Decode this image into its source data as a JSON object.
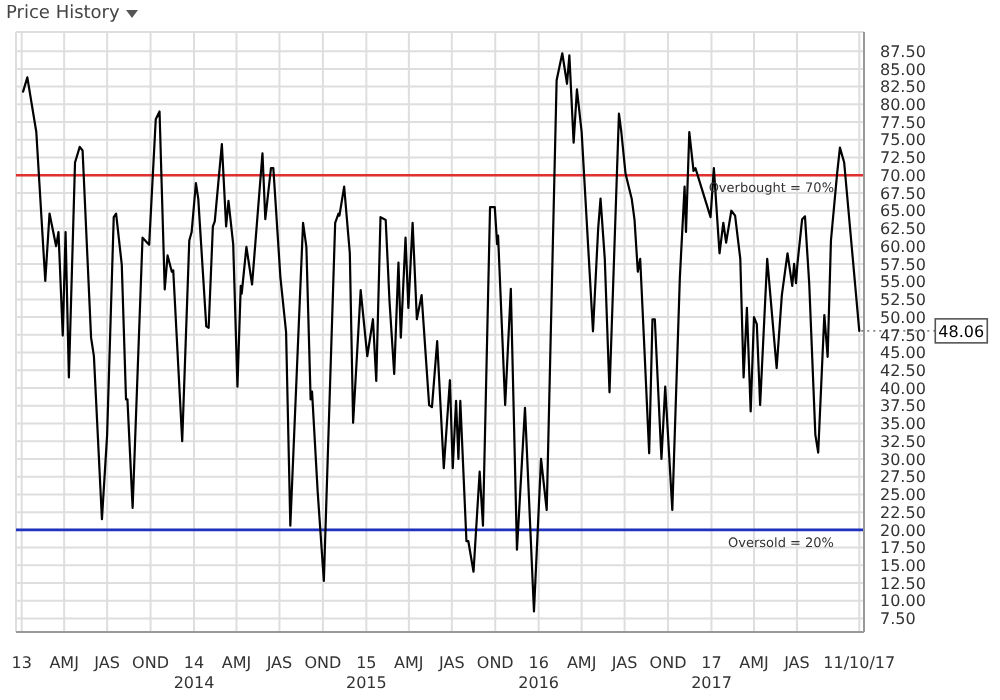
{
  "chart_data": {
    "type": "line",
    "title": "Price History",
    "x": [
      "2013-01-04",
      "2013-01-13",
      "2013-02-01",
      "2013-02-20",
      "2013-03-01",
      "2013-03-15",
      "2013-03-20",
      "2013-03-29",
      "2013-04-04",
      "2013-04-11",
      "2013-04-24",
      "2013-05-04",
      "2013-05-10",
      "2013-05-28",
      "2013-06-03",
      "2013-06-20",
      "2013-07-01",
      "2013-07-15",
      "2013-07-20",
      "2013-08-01",
      "2013-08-10",
      "2013-08-13",
      "2013-08-24",
      "2013-09-14",
      "2013-09-28",
      "2013-10-12",
      "2013-10-20",
      "2013-10-31",
      "2013-11-06",
      "2013-11-15",
      "2013-11-18",
      "2013-12-07",
      "2013-12-22",
      "2013-12-27",
      "2014-01-05",
      "2014-01-10",
      "2014-01-27",
      "2014-02-01",
      "2014-02-10",
      "2014-02-14",
      "2014-03-01",
      "2014-03-10",
      "2014-03-15",
      "2014-03-25",
      "2014-04-03",
      "2014-04-10",
      "2014-04-12",
      "2014-04-22",
      "2014-05-04",
      "2014-05-26",
      "2014-06-01",
      "2014-06-13",
      "2014-06-18",
      "2014-07-03",
      "2014-07-15",
      "2014-07-24",
      "2014-08-20",
      "2014-08-27",
      "2014-09-05",
      "2014-09-08",
      "2014-09-20",
      "2014-10-03",
      "2014-10-27",
      "2014-11-03",
      "2014-11-05",
      "2014-11-15",
      "2014-11-27",
      "2014-12-04",
      "2014-12-20",
      "2015-01-03",
      "2015-01-15",
      "2015-01-22",
      "2015-01-31",
      "2015-02-11",
      "2015-02-19",
      "2015-03-01",
      "2015-03-10",
      "2015-03-15",
      "2015-03-25",
      "2015-03-31",
      "2015-04-09",
      "2015-04-18",
      "2015-04-28",
      "2015-05-14",
      "2015-05-20",
      "2015-05-31",
      "2015-06-14",
      "2015-06-27",
      "2015-07-03",
      "2015-07-10",
      "2015-07-15",
      "2015-07-19",
      "2015-08-01",
      "2015-08-05",
      "2015-08-16",
      "2015-08-29",
      "2015-09-05",
      "2015-09-20",
      "2015-09-30",
      "2015-10-05",
      "2015-10-07",
      "2015-10-22",
      "2015-11-03",
      "2015-11-16",
      "2015-12-03",
      "2015-12-22",
      "2016-01-06",
      "2016-01-18",
      "2016-02-08",
      "2016-02-20",
      "2016-03-01",
      "2016-03-06",
      "2016-03-15",
      "2016-03-22",
      "2016-04-01",
      "2016-04-25",
      "2016-05-06",
      "2016-05-11",
      "2016-05-20",
      "2016-05-30",
      "2016-06-09",
      "2016-06-19",
      "2016-06-24",
      "2016-07-03",
      "2016-07-16",
      "2016-07-22",
      "2016-07-29",
      "2016-08-03",
      "2016-08-12",
      "2016-08-22",
      "2016-08-29",
      "2016-09-03",
      "2016-09-17",
      "2016-09-25",
      "2016-10-10",
      "2016-10-26",
      "2016-11-05",
      "2016-11-08",
      "2016-11-15",
      "2016-11-24",
      "2016-11-28",
      "2016-12-30",
      "2017-01-06",
      "2017-01-18",
      "2017-01-26",
      "2017-02-01",
      "2017-02-12",
      "2017-02-20",
      "2017-03-03",
      "2017-03-10",
      "2017-03-17",
      "2017-03-25",
      "2017-04-01",
      "2017-04-07",
      "2017-04-14",
      "2017-04-29",
      "2017-05-19",
      "2017-05-30",
      "2017-06-11",
      "2017-06-21",
      "2017-06-25",
      "2017-06-29",
      "2017-07-02",
      "2017-07-12",
      "2017-07-18",
      "2017-07-27",
      "2017-08-09",
      "2017-08-15",
      "2017-08-28",
      "2017-09-04",
      "2017-09-11",
      "2017-09-24",
      "2017-09-30",
      "2017-10-09",
      "2017-11-10"
    ],
    "series": [
      {
        "color": "#000000",
        "values": [
          81.8,
          83.8,
          76.1,
          55.1,
          64.6,
          60,
          62,
          47.4,
          62,
          41.5,
          71.8,
          74,
          73.5,
          47.1,
          44.5,
          21.5,
          33.4,
          64.1,
          64.6,
          57.4,
          38.4,
          38.4,
          23.1,
          61.2,
          60.2,
          77.9,
          79,
          53.9,
          58.7,
          56.4,
          56.6,
          32.5,
          60.8,
          62,
          68.9,
          66.7,
          48.7,
          48.5,
          62.8,
          63.5,
          74.4,
          62.8,
          66.4,
          60.3,
          40.2,
          54.4,
          53.3,
          59.9,
          54.6,
          73.1,
          63.8,
          71,
          71,
          55.6,
          47.9,
          20.6,
          63.3,
          59.9,
          38.4,
          39.5,
          25.3,
          12.8,
          63.3,
          64.6,
          64.3,
          68.4,
          59,
          35.1,
          53.8,
          44.5,
          49.7,
          41,
          64.1,
          63.7,
          52.3,
          42,
          57.7,
          47.1,
          61.2,
          51.3,
          63.3,
          49.7,
          53.1,
          37.6,
          37.3,
          46.6,
          28.7,
          41.1,
          28.7,
          38.2,
          30,
          38.2,
          18.4,
          18.4,
          14.1,
          28.2,
          20.6,
          65.5,
          65.5,
          60.3,
          61.5,
          37.6,
          54,
          17.2,
          37.2,
          8.5,
          30,
          22.8,
          83.4,
          87.2,
          82.9,
          86.9,
          74.6,
          82.1,
          76.1,
          48,
          62.5,
          66.7,
          58.2,
          39.4,
          59,
          78.7,
          76.1,
          70.2,
          66.7,
          63.7,
          56.4,
          58.2,
          45.4,
          30.8,
          49.7,
          49.7,
          30,
          40.2,
          22.8,
          55.6,
          68.4,
          62,
          76.1,
          70.6,
          71,
          64.1,
          71,
          59,
          63.3,
          60.5,
          65,
          64.3,
          58.2,
          41.5,
          51.3,
          36.7,
          50,
          49,
          37.6,
          58.2,
          42.8,
          53.1,
          59,
          54.4,
          57.5,
          54.8,
          57.5,
          63.8,
          64.2,
          54.7,
          33.4,
          30.9,
          50.3,
          44.4,
          60.8,
          70.2,
          73.9,
          71.8,
          48.06
        ]
      }
    ],
    "xlim": [
      "2012-12-20",
      "2017-11-20"
    ],
    "xticks": [
      {
        "value": "2013-01-01",
        "label": "13"
      },
      {
        "value": "2013-04-01",
        "label": "AMJ"
      },
      {
        "value": "2013-07-01",
        "label": "JAS"
      },
      {
        "value": "2013-10-01",
        "label": "OND"
      },
      {
        "value": "2014-01-01",
        "label": "14\n2014"
      },
      {
        "value": "2014-04-01",
        "label": "AMJ"
      },
      {
        "value": "2014-07-01",
        "label": "JAS"
      },
      {
        "value": "2014-10-01",
        "label": "OND"
      },
      {
        "value": "2015-01-01",
        "label": "15\n2015"
      },
      {
        "value": "2015-04-01",
        "label": "AMJ"
      },
      {
        "value": "2015-07-01",
        "label": "JAS"
      },
      {
        "value": "2015-10-01",
        "label": "OND"
      },
      {
        "value": "2016-01-01",
        "label": "16\n2016"
      },
      {
        "value": "2016-04-01",
        "label": "AMJ"
      },
      {
        "value": "2016-07-01",
        "label": "JAS"
      },
      {
        "value": "2016-10-01",
        "label": "OND"
      },
      {
        "value": "2017-01-01",
        "label": "17\n2017"
      },
      {
        "value": "2017-04-01",
        "label": "AMJ"
      },
      {
        "value": "2017-07-01",
        "label": "JAS"
      },
      {
        "value": "2017-11-10",
        "label": "11/10/17"
      }
    ],
    "ylim": [
      5.6,
      90.2
    ],
    "yticks": [
      {
        "value": 7.5,
        "label": "7.50"
      },
      {
        "value": 10,
        "label": "10.00"
      },
      {
        "value": 12.5,
        "label": "12.50"
      },
      {
        "value": 15,
        "label": "15.00"
      },
      {
        "value": 17.5,
        "label": "17.50"
      },
      {
        "value": 20,
        "label": "20.00"
      },
      {
        "value": 22.5,
        "label": "22.50"
      },
      {
        "value": 25,
        "label": "25.00"
      },
      {
        "value": 27.5,
        "label": "27.50"
      },
      {
        "value": 30,
        "label": "30.00"
      },
      {
        "value": 32.5,
        "label": "32.50"
      },
      {
        "value": 35,
        "label": "35.00"
      },
      {
        "value": 37.5,
        "label": "37.50"
      },
      {
        "value": 40,
        "label": "40.00"
      },
      {
        "value": 42.5,
        "label": "42.50"
      },
      {
        "value": 45,
        "label": "45.00"
      },
      {
        "value": 47.5,
        "label": "47.50"
      },
      {
        "value": 50,
        "label": "50.00"
      },
      {
        "value": 52.5,
        "label": "52.50"
      },
      {
        "value": 55,
        "label": "55.00"
      },
      {
        "value": 57.5,
        "label": "57.50"
      },
      {
        "value": 60,
        "label": "60.00"
      },
      {
        "value": 62.5,
        "label": "62.50"
      },
      {
        "value": 65,
        "label": "65.00"
      },
      {
        "value": 67.5,
        "label": "67.50"
      },
      {
        "value": 70,
        "label": "70.00"
      },
      {
        "value": 72.5,
        "label": "72.50"
      },
      {
        "value": 75,
        "label": "75.00"
      },
      {
        "value": 77.5,
        "label": "77.50"
      },
      {
        "value": 80,
        "label": "80.00"
      },
      {
        "value": 82.5,
        "label": "82.50"
      },
      {
        "value": 85,
        "label": "85.00"
      },
      {
        "value": 87.5,
        "label": "87.50"
      }
    ],
    "ref_lines": [
      {
        "axis": "y",
        "value": 70,
        "label": "Overbought = 70%",
        "color": "#e03030"
      },
      {
        "axis": "y",
        "value": 20,
        "label": "Oversold = 20%",
        "color": "#2030c0"
      }
    ],
    "annotations": [
      {
        "text": "48.06",
        "x": "2017-11-10",
        "y": 48.06
      }
    ],
    "grid": true,
    "legend": false,
    "marker": "none",
    "line_style": "solid"
  }
}
